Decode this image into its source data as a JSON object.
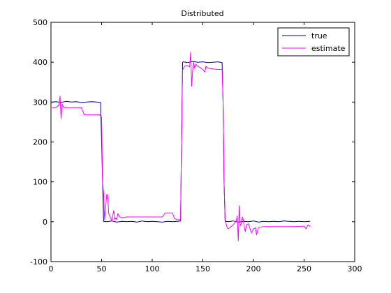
{
  "chart_data": {
    "type": "line",
    "title": "Distributed",
    "xlabel": "",
    "ylabel": "",
    "xlim": [
      0,
      300
    ],
    "ylim": [
      -100,
      500
    ],
    "xticks": [
      0,
      50,
      100,
      150,
      200,
      250,
      300
    ],
    "yticks": [
      -100,
      0,
      100,
      200,
      300,
      400,
      500
    ],
    "grid": false,
    "legend_position": "top-right",
    "series": [
      {
        "name": "true",
        "color": "#00008b",
        "x": [
          1,
          5,
          10,
          15,
          20,
          25,
          30,
          35,
          40,
          45,
          49,
          50,
          51,
          52,
          55,
          60,
          65,
          70,
          75,
          80,
          85,
          90,
          95,
          100,
          105,
          110,
          115,
          120,
          125,
          128,
          129,
          130,
          131,
          135,
          140,
          145,
          150,
          155,
          160,
          165,
          169,
          170,
          171,
          172,
          175,
          180,
          185,
          190,
          195,
          200,
          205,
          210,
          215,
          220,
          225,
          230,
          235,
          240,
          245,
          250,
          256
        ],
        "y": [
          300,
          301,
          299,
          302,
          300,
          301,
          299,
          300,
          301,
          300,
          299,
          200,
          100,
          1,
          0,
          2,
          -1,
          1,
          0,
          1,
          -1,
          2,
          0,
          1,
          0,
          -1,
          1,
          0,
          1,
          2,
          200,
          400,
          401,
          399,
          402,
          400,
          401,
          399,
          400,
          401,
          399,
          300,
          100,
          1,
          0,
          2,
          -1,
          1,
          0,
          2,
          -1,
          1,
          0,
          1,
          0,
          2,
          1,
          0,
          1,
          0,
          1
        ]
      },
      {
        "name": "estimate",
        "color": "#ff00ff",
        "x": [
          1,
          5,
          8,
          9,
          10,
          11,
          12,
          13,
          15,
          20,
          25,
          30,
          33,
          35,
          40,
          45,
          48,
          49,
          50,
          51,
          52,
          53,
          55,
          56,
          57,
          58,
          60,
          62,
          63,
          64,
          65,
          66,
          68,
          70,
          75,
          80,
          90,
          100,
          110,
          113,
          115,
          120,
          122,
          125,
          128,
          129,
          130,
          131,
          132,
          135,
          137,
          138,
          139,
          140,
          141,
          142,
          143,
          145,
          150,
          152,
          153,
          155,
          160,
          165,
          168,
          169,
          170,
          171,
          172,
          174,
          175,
          180,
          183,
          184,
          185,
          186,
          187,
          188,
          189,
          190,
          191,
          192,
          193,
          195,
          197,
          198,
          200,
          202,
          203,
          205,
          210,
          220,
          230,
          240,
          250,
          252,
          253,
          254,
          256
        ],
        "y": [
          285,
          287,
          292,
          315,
          258,
          295,
          290,
          285,
          286,
          286,
          286,
          286,
          268,
          268,
          268,
          268,
          268,
          265,
          262,
          100,
          70,
          5,
          68,
          68,
          20,
          15,
          2,
          28,
          5,
          10,
          5,
          20,
          12,
          10,
          12,
          12,
          12,
          12,
          12,
          22,
          22,
          22,
          8,
          5,
          5,
          200,
          380,
          385,
          390,
          392,
          388,
          425,
          340,
          380,
          400,
          385,
          395,
          390,
          382,
          375,
          390,
          385,
          383,
          382,
          382,
          382,
          300,
          100,
          5,
          -15,
          -18,
          -8,
          2,
          15,
          -48,
          40,
          -10,
          -5,
          12,
          5,
          -15,
          -25,
          -8,
          -5,
          -20,
          -28,
          -18,
          -15,
          -33,
          -15,
          -12,
          -12,
          -12,
          -12,
          -11,
          -18,
          -12,
          -8,
          -12
        ]
      }
    ]
  }
}
